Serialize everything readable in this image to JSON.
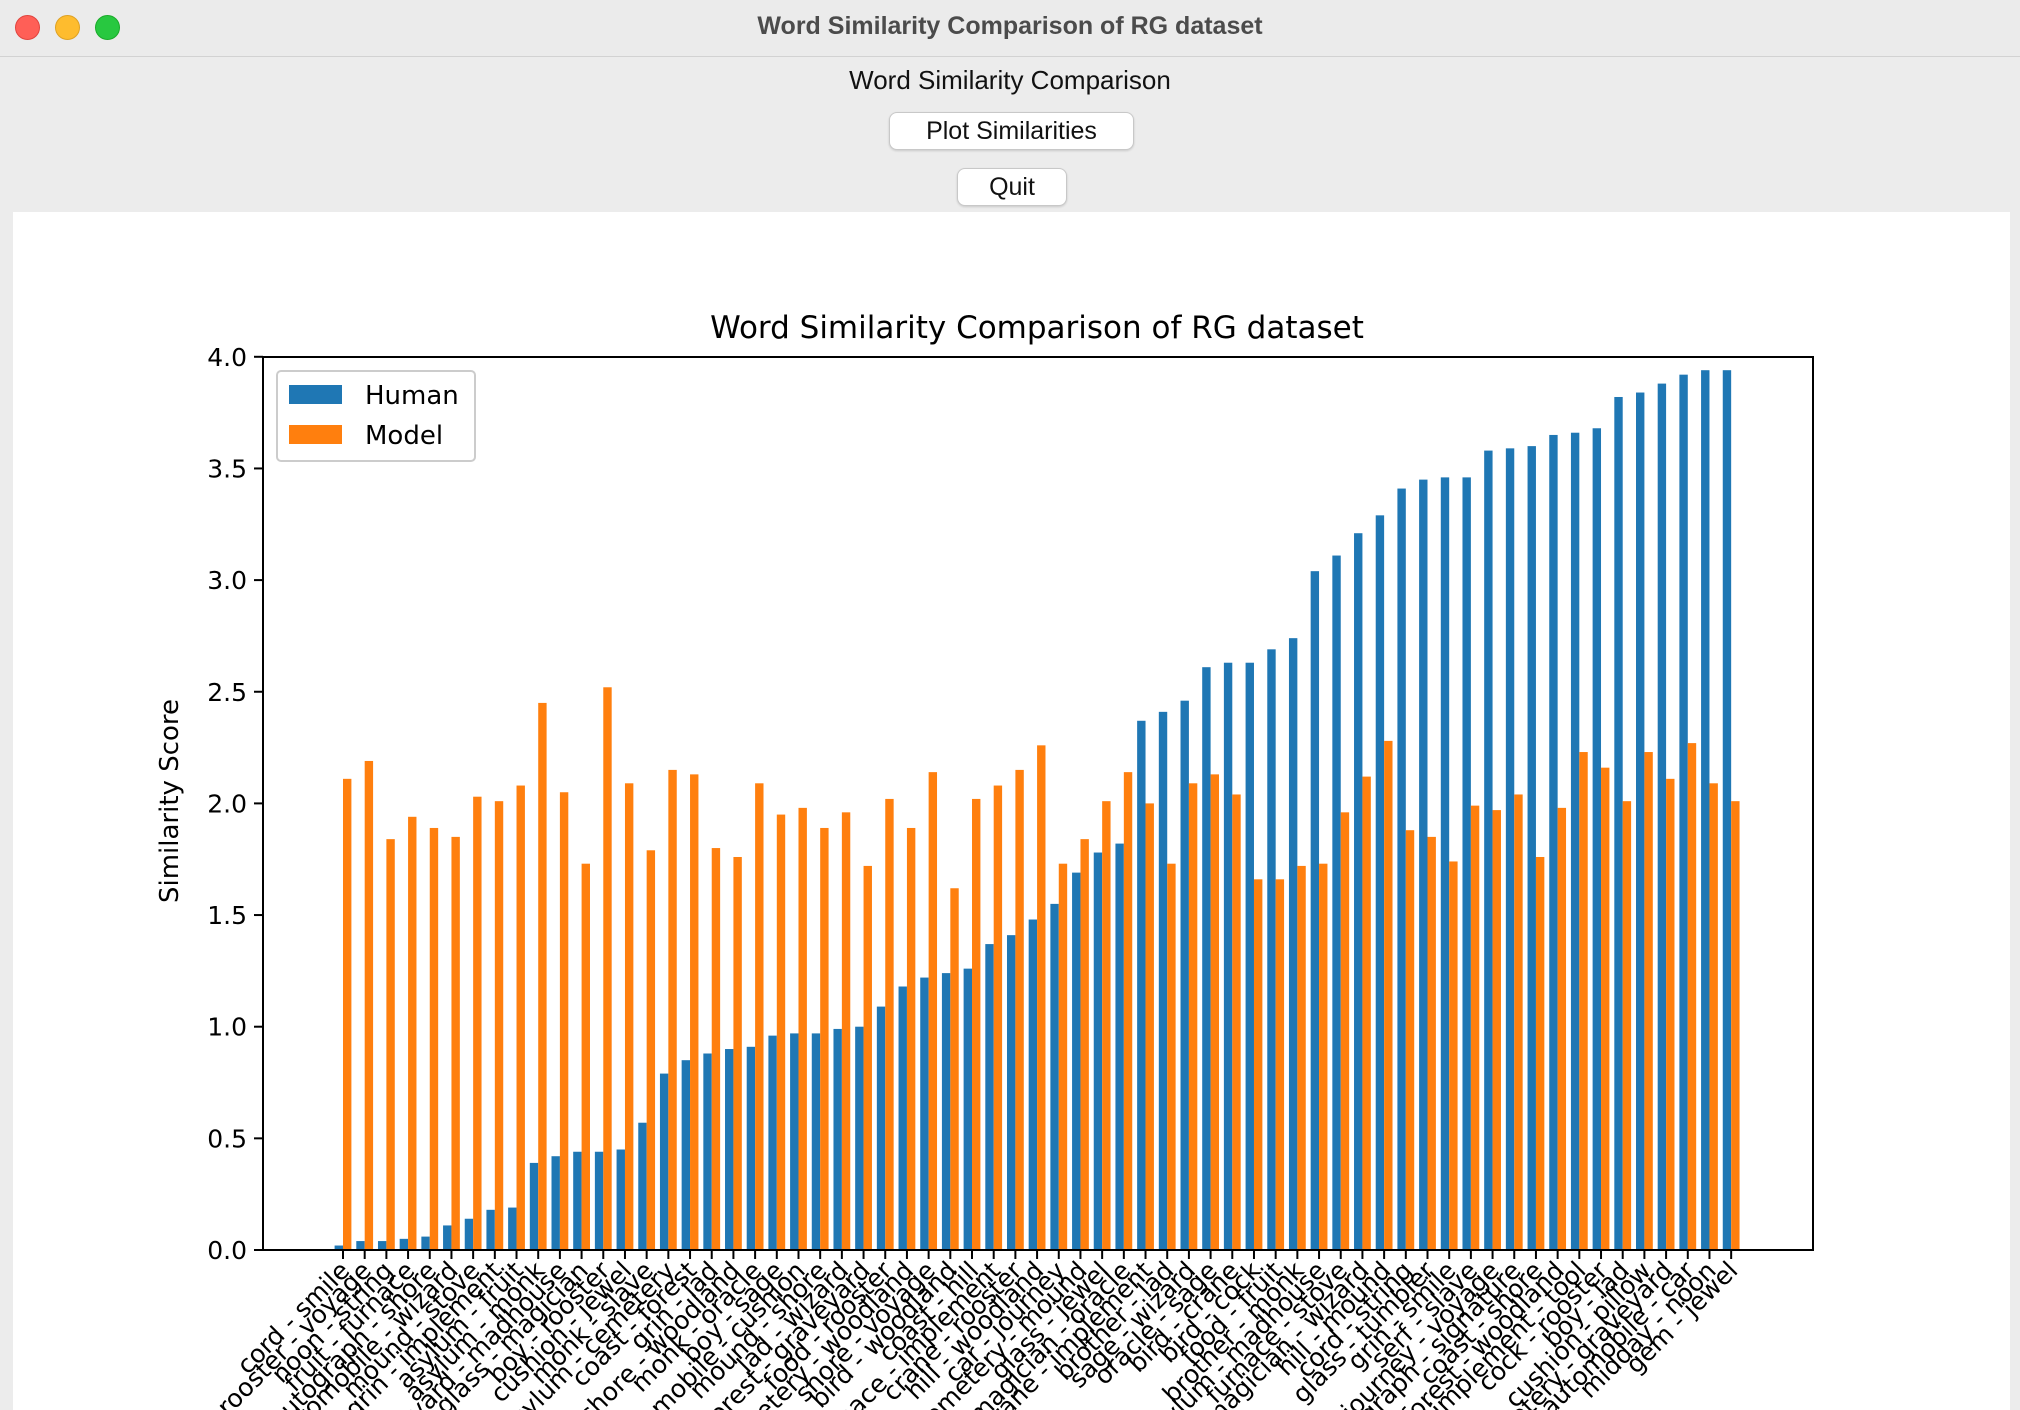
{
  "window": {
    "title": "Word Similarity Comparison of RG dataset"
  },
  "app": {
    "heading": "Word Similarity Comparison",
    "plot_button": "Plot Similarities",
    "quit_button": "Quit"
  },
  "colors": {
    "human": "#1f77b4",
    "model": "#ff7f0e",
    "axes": "#000000"
  },
  "chart_data": {
    "type": "bar",
    "title": "Word Similarity Comparison of RG dataset",
    "xlabel": "",
    "ylabel": "Similarity Score",
    "ylim": [
      0,
      4.12
    ],
    "yticks": [
      "0.0",
      "0.5",
      "1.0",
      "1.5",
      "2.0",
      "2.5",
      "3.0",
      "3.5",
      "4.0"
    ],
    "legend": "top-left",
    "grid": false,
    "categories": [
      "cord - smile",
      "rooster - voyage",
      "noon - string",
      "fruit - furnace",
      "autograph - shore",
      "automobile - wizard",
      "mound - stove",
      "grin - implement",
      "asylum - fruit",
      "asylum - monk",
      "graveyard - madhouse",
      "glass - magician",
      "boy - rooster",
      "cushion - jewel",
      "monk - slave",
      "asylum - cemetery",
      "coast - forest",
      "grin - lad",
      "shore - woodland",
      "monk - oracle",
      "boy - sage",
      "automobile - cushion",
      "mound - shore",
      "lad - wizard",
      "forest - graveyard",
      "food - rooster",
      "cemetery - woodland",
      "shore - voyage",
      "bird - woodland",
      "coast - hill",
      "furnace - implement",
      "crane - rooster",
      "hill - woodland",
      "car - journey",
      "cemetery - mound",
      "glass - jewel",
      "magician - oracle",
      "crane - implement",
      "brother - lad",
      "sage - wizard",
      "oracle - sage",
      "bird - crane",
      "bird - cock",
      "food - fruit",
      "brother - monk",
      "asylum - madhouse",
      "furnace - stove",
      "magician - wizard",
      "hill - mound",
      "cord - string",
      "glass - tumbler",
      "grin - smile",
      "serf - slave",
      "journey - voyage",
      "autograph - signature",
      "coast - shore",
      "forest - woodland",
      "implement - tool",
      "cock - rooster",
      "boy - lad",
      "cushion - pillow",
      "cemetery - graveyard",
      "automobile - car",
      "midday - noon",
      "gem - jewel"
    ],
    "series": [
      {
        "name": "Human",
        "values": [
          0.02,
          0.04,
          0.04,
          0.05,
          0.06,
          0.11,
          0.14,
          0.18,
          0.19,
          0.39,
          0.42,
          0.44,
          0.44,
          0.45,
          0.57,
          0.79,
          0.85,
          0.88,
          0.9,
          0.91,
          0.96,
          0.97,
          0.97,
          0.99,
          1.0,
          1.09,
          1.18,
          1.22,
          1.24,
          1.26,
          1.37,
          1.41,
          1.48,
          1.55,
          1.69,
          1.78,
          1.82,
          2.37,
          2.41,
          2.46,
          2.61,
          2.63,
          2.63,
          2.69,
          2.74,
          3.04,
          3.11,
          3.21,
          3.29,
          3.41,
          3.45,
          3.46,
          3.46,
          3.58,
          3.59,
          3.6,
          3.65,
          3.66,
          3.68,
          3.82,
          3.84,
          3.88,
          3.92,
          3.94,
          3.94
        ]
      },
      {
        "name": "Model",
        "values": [
          2.11,
          2.19,
          1.84,
          1.94,
          1.89,
          1.85,
          2.03,
          2.01,
          2.08,
          2.45,
          2.05,
          1.73,
          2.52,
          2.09,
          1.79,
          2.15,
          2.13,
          1.8,
          1.76,
          2.09,
          1.95,
          1.98,
          1.89,
          1.96,
          1.72,
          2.02,
          1.89,
          2.14,
          1.62,
          2.02,
          2.08,
          2.15,
          2.26,
          1.73,
          1.84,
          2.01,
          2.14,
          2.0,
          1.73,
          2.09,
          2.13,
          2.04,
          1.66,
          1.66,
          1.72,
          1.73,
          1.96,
          2.12,
          2.28,
          1.88,
          1.85,
          1.74,
          1.99,
          1.97,
          2.04,
          1.76,
          1.98,
          2.23,
          2.16,
          2.01,
          2.23,
          2.11,
          2.27,
          2.09,
          2.01
        ]
      }
    ]
  }
}
